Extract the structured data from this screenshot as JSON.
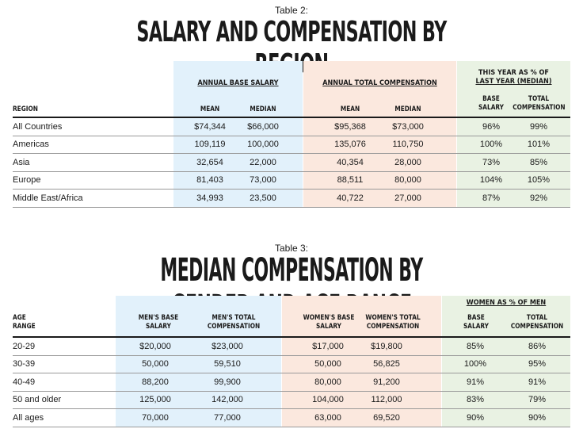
{
  "table2": {
    "caption": "Table 2:",
    "title": "SALARY AND COMPENSATION BY REGION",
    "groups": {
      "base": "ANNUAL BASE SALARY",
      "total": "ANNUAL TOTAL COMPENSATION",
      "pct_line1": "THIS YEAR AS % OF",
      "pct_line2": "LAST YEAR (MEDIAN)"
    },
    "headers": {
      "region": "REGION",
      "base_mean": "MEAN",
      "base_median": "MEDIAN",
      "total_mean": "MEAN",
      "total_median": "MEDIAN",
      "pct_base_1": "BASE",
      "pct_base_2": "SALARY",
      "pct_total_1": "TOTAL",
      "pct_total_2": "COMPENSATION"
    },
    "rows": [
      [
        "All Countries",
        "$74,344",
        "$66,000",
        "$95,368",
        "$73,000",
        "96%",
        "99%"
      ],
      [
        "Americas",
        "109,119",
        "100,000",
        "135,076",
        "110,750",
        "100%",
        "101%"
      ],
      [
        "Asia",
        "32,654",
        "22,000",
        "40,354",
        "28,000",
        "73%",
        "85%"
      ],
      [
        "Europe",
        "81,403",
        "73,000",
        "88,511",
        "80,000",
        "104%",
        "105%"
      ],
      [
        "Middle East/Africa",
        "34,993",
        "23,500",
        "40,722",
        "27,000",
        "87%",
        "92%"
      ]
    ]
  },
  "table3": {
    "caption": "Table 3:",
    "title": "MEDIAN COMPENSATION BY GENDER AND AGE RANGE",
    "groups": {
      "pct": "WOMEN AS % OF MEN"
    },
    "headers": {
      "age_1": "AGE",
      "age_2": "RANGE",
      "men_base_1": "MEN'S BASE",
      "men_base_2": "SALARY",
      "men_total_1": "MEN'S TOTAL",
      "men_total_2": "COMPENSATION",
      "women_base_1": "WOMEN'S BASE",
      "women_base_2": "SALARY",
      "women_total_1": "WOMEN'S TOTAL",
      "women_total_2": "COMPENSATION",
      "pct_base_1": "BASE",
      "pct_base_2": "SALARY",
      "pct_total_1": "TOTAL",
      "pct_total_2": "COMPENSATION"
    },
    "rows": [
      [
        "20-29",
        "$20,000",
        "$23,000",
        "$17,000",
        "$19,800",
        "85%",
        "86%"
      ],
      [
        "30-39",
        "50,000",
        "59,510",
        "50,000",
        "56,825",
        "100%",
        "95%"
      ],
      [
        "40-49",
        "88,200",
        "99,900",
        "80,000",
        "91,200",
        "91%",
        "91%"
      ],
      [
        "50 and older",
        "125,000",
        "142,000",
        "104,000",
        "112,000",
        "83%",
        "79%"
      ],
      [
        "All ages",
        "70,000",
        "77,000",
        "63,000",
        "69,520",
        "90%",
        "90%"
      ]
    ]
  }
}
